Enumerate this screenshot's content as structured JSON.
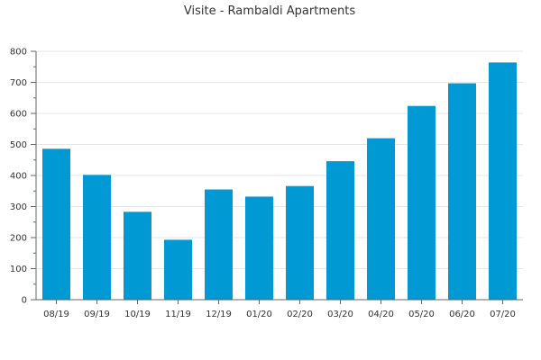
{
  "chart_data": {
    "type": "bar",
    "title": "Visite - Rambaldi Apartments",
    "xlabel": "",
    "ylabel": "",
    "categories": [
      "08/19",
      "09/19",
      "10/19",
      "11/19",
      "12/19",
      "01/20",
      "02/20",
      "03/20",
      "04/20",
      "05/20",
      "06/20",
      "07/20"
    ],
    "values": [
      486,
      402,
      283,
      193,
      355,
      332,
      366,
      446,
      520,
      624,
      697,
      764
    ],
    "ylim": [
      0,
      800
    ],
    "yticks": [
      0,
      100,
      200,
      300,
      400,
      500,
      600,
      700,
      800
    ],
    "grid": true,
    "legend": "none",
    "bar_color": "#0099d4"
  }
}
